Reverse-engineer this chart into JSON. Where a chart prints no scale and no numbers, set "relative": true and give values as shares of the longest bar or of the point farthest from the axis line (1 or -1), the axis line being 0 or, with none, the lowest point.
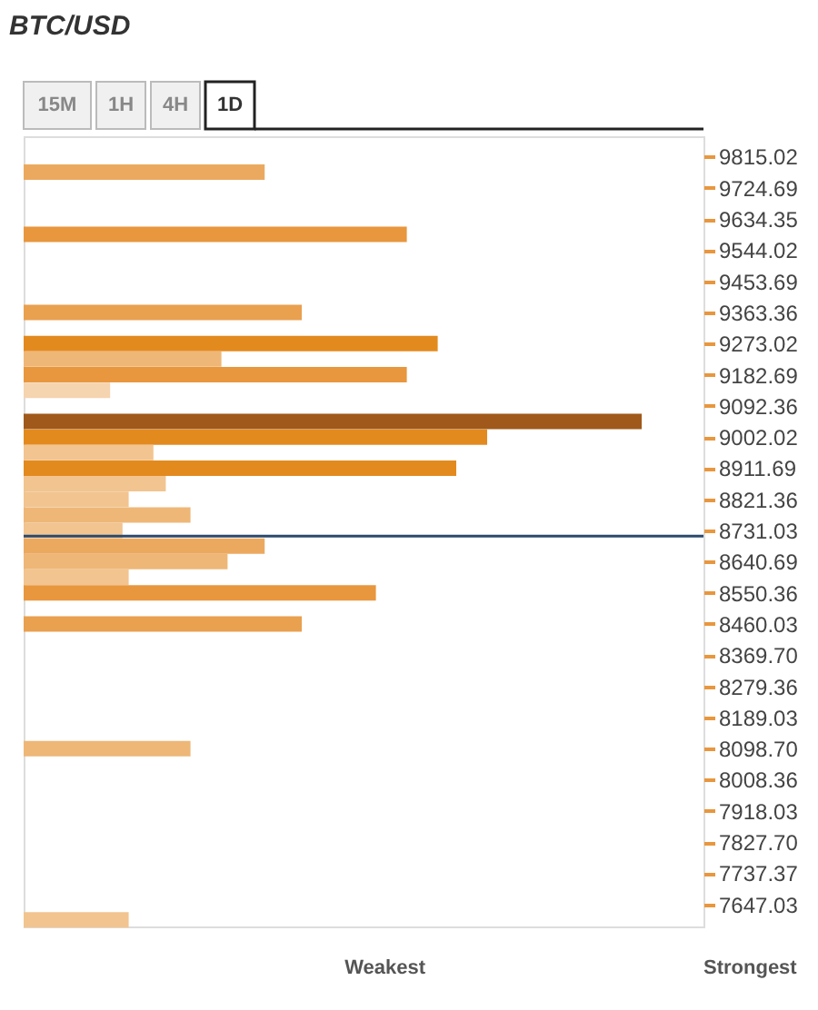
{
  "chart_data": {
    "type": "bar",
    "orientation": "horizontal",
    "relative": true,
    "title": "BTC/USD",
    "annotations": [
      "15M",
      "1H",
      "4H",
      "1D",
      "Weakest",
      "Strongest"
    ],
    "x": [
      9769.9,
      9589.7,
      9363.4,
      9273.0,
      9227.9,
      9182.7,
      9137.5,
      9047.2,
      9002.0,
      8956.9,
      8911.7,
      8866.5,
      8821.4,
      8776.2,
      8731.0,
      8685.9,
      8640.7,
      8595.5,
      8550.4,
      8460.0,
      8098.7,
      7601.9
    ],
    "values": [
      0.39,
      0.62,
      0.45,
      0.67,
      0.32,
      0.62,
      0.14,
      1.0,
      0.75,
      0.21,
      0.7,
      0.23,
      0.17,
      0.27,
      0.16,
      0.39,
      0.33,
      0.17,
      0.57,
      0.45,
      0.27,
      0.17
    ],
    "colors": [
      "#eba95f",
      "#e8973e",
      "#e9a04f",
      "#e38a1f",
      "#eeb777",
      "#e8973e",
      "#f5d4b0",
      "#a0591a",
      "#e38a1f",
      "#f2c490",
      "#e38a1f",
      "#f2c490",
      "#f2c490",
      "#eeb777",
      "#f2c490",
      "#eba95f",
      "#eeb777",
      "#f2c490",
      "#e8973e",
      "#e9a04f",
      "#eeb777",
      "#f2c490"
    ],
    "ylim": [
      7583,
      9874
    ],
    "yticks": [
      9815.02,
      9724.69,
      9634.35,
      9544.02,
      9453.69,
      9363.36,
      9273.02,
      9182.69,
      9092.36,
      9002.02,
      8911.69,
      8821.36,
      8731.03,
      8640.69,
      8550.36,
      8460.03,
      {
        "value": 8369.7,
        "label": "8369.70"
      },
      8279.36,
      8189.03,
      {
        "value": 8098.7,
        "label": "8098.70"
      },
      8008.36,
      7918.03,
      {
        "value": 7827.7,
        "label": "7827.70"
      },
      7737.37,
      7647.03
    ],
    "ref_lines": [
      {
        "axis": "y",
        "value": 8715,
        "label": null,
        "color": "#2b4a6e"
      }
    ]
  }
}
